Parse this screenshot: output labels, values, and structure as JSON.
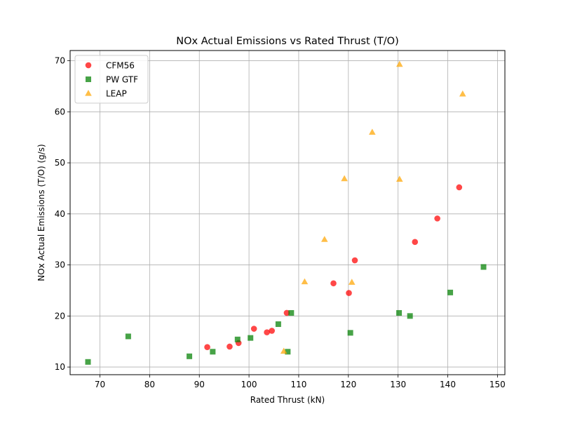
{
  "chart_data": {
    "type": "scatter",
    "title": "NOx Actual Emissions vs Rated Thrust (T/O)",
    "xlabel": "Rated Thrust (kN)",
    "ylabel": "NOx Actual Emissions (T/O) (g/s)",
    "xlim": [
      64.0,
      151.5
    ],
    "ylim": [
      8.5,
      72.0
    ],
    "xticks": [
      70,
      80,
      90,
      100,
      110,
      120,
      130,
      140,
      150
    ],
    "yticks": [
      10,
      20,
      30,
      40,
      50,
      60,
      70
    ],
    "grid": true,
    "legend_position": "top-left",
    "series": [
      {
        "name": "CFM56",
        "marker": "circle",
        "color": "#ff0000",
        "points": [
          [
            91.6,
            13.9
          ],
          [
            96.1,
            14.0
          ],
          [
            97.9,
            14.7
          ],
          [
            101.0,
            17.5
          ],
          [
            103.6,
            16.8
          ],
          [
            104.6,
            17.1
          ],
          [
            107.6,
            20.6
          ],
          [
            117.0,
            26.4
          ],
          [
            120.1,
            24.5
          ],
          [
            121.3,
            30.9
          ],
          [
            133.4,
            34.5
          ],
          [
            137.9,
            39.1
          ],
          [
            142.3,
            45.2
          ]
        ]
      },
      {
        "name": "PW GTF",
        "marker": "square",
        "color": "#008000",
        "points": [
          [
            67.6,
            11.0
          ],
          [
            75.7,
            16.0
          ],
          [
            88.0,
            12.1
          ],
          [
            92.7,
            13.0
          ],
          [
            97.7,
            15.4
          ],
          [
            100.3,
            15.7
          ],
          [
            105.9,
            18.4
          ],
          [
            107.8,
            13.0
          ],
          [
            108.5,
            20.6
          ],
          [
            120.4,
            16.7
          ],
          [
            130.2,
            20.6
          ],
          [
            132.4,
            20.0
          ],
          [
            140.5,
            24.6
          ],
          [
            147.2,
            29.6
          ]
        ]
      },
      {
        "name": "LEAP",
        "marker": "triangle",
        "color": "#ffa500",
        "points": [
          [
            107.0,
            13.1
          ],
          [
            111.2,
            26.7
          ],
          [
            115.2,
            35.0
          ],
          [
            119.2,
            46.9
          ],
          [
            120.7,
            26.6
          ],
          [
            124.8,
            56.0
          ],
          [
            130.3,
            69.3
          ],
          [
            130.3,
            46.8
          ],
          [
            143.0,
            63.5
          ]
        ]
      }
    ]
  }
}
